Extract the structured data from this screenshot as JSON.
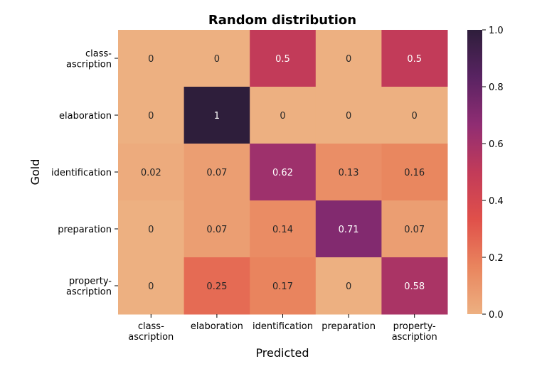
{
  "chart_data": {
    "type": "heatmap",
    "title": "Random distribution",
    "xlabel": "Predicted",
    "ylabel": "Gold",
    "x_categories": [
      "class-\nascription",
      "elaboration",
      "identification",
      "preparation",
      "property-\nascription"
    ],
    "y_categories": [
      "class-\nascription",
      "elaboration",
      "identification",
      "preparation",
      "property-\nascription"
    ],
    "values": [
      [
        0,
        0,
        0.5,
        0,
        0.5
      ],
      [
        0,
        1,
        0,
        0,
        0
      ],
      [
        0.02,
        0.07,
        0.62,
        0.13,
        0.16
      ],
      [
        0,
        0.07,
        0.14,
        0.71,
        0.07
      ],
      [
        0,
        0.25,
        0.17,
        0,
        0.58
      ]
    ],
    "value_labels": [
      [
        "0",
        "0",
        "0.5",
        "0",
        "0.5"
      ],
      [
        "0",
        "1",
        "0",
        "0",
        "0"
      ],
      [
        "0.02",
        "0.07",
        "0.62",
        "0.13",
        "0.16"
      ],
      [
        "0",
        "0.07",
        "0.14",
        "0.71",
        "0.07"
      ],
      [
        "0",
        "0.25",
        "0.17",
        "0",
        "0.58"
      ]
    ],
    "colorbar": {
      "range": [
        0,
        1
      ],
      "ticks": [
        "0.0",
        "0.2",
        "0.4",
        "0.6",
        "0.8",
        "1.0"
      ],
      "colormap": [
        "#edb081",
        "#e9855e",
        "#e0504a",
        "#c23b59",
        "#902d73",
        "#592362",
        "#2e1e3b"
      ]
    },
    "grid": false,
    "legend": "colorbar-right"
  }
}
